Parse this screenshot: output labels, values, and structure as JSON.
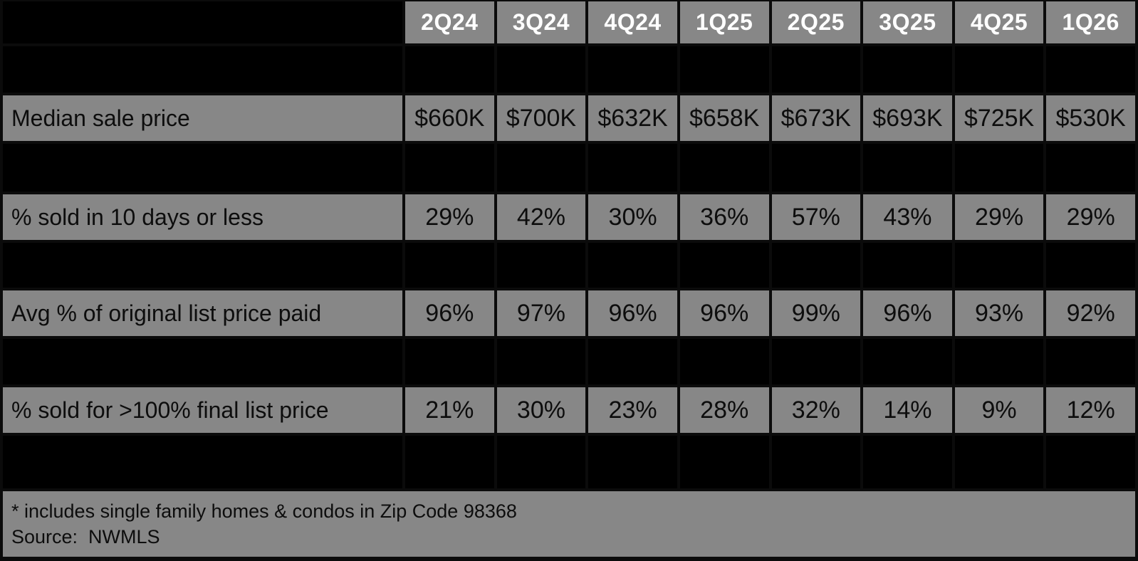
{
  "chart_data": {
    "type": "table",
    "quarters": [
      "2Q24",
      "3Q24",
      "4Q24",
      "1Q25",
      "2Q25",
      "3Q25",
      "4Q25",
      "1Q26"
    ],
    "rows": [
      {
        "label": "Median sale price",
        "values": [
          "$660K",
          "$700K",
          "$632K",
          "$658K",
          "$673K",
          "$693K",
          "$725K",
          "$530K"
        ]
      },
      {
        "label": "% sold in 10 days or less",
        "values": [
          "29%",
          "42%",
          "30%",
          "36%",
          "57%",
          "43%",
          "29%",
          "29%"
        ]
      },
      {
        "label": "Avg % of original list price paid",
        "values": [
          "96%",
          "97%",
          "96%",
          "96%",
          "99%",
          "96%",
          "93%",
          "92%"
        ]
      },
      {
        "label": "% sold for >100% final list price",
        "values": [
          "21%",
          "30%",
          "23%",
          "28%",
          "32%",
          "14%",
          "9%",
          "12%"
        ]
      }
    ],
    "footnote": "* includes single family homes & condos in Zip Code 98368",
    "source": "Source:  NWMLS"
  },
  "colors": {
    "background": "#000000",
    "cell_gray": "#878787",
    "header_text": "#ffffff",
    "body_text": "#0d0d0d"
  }
}
